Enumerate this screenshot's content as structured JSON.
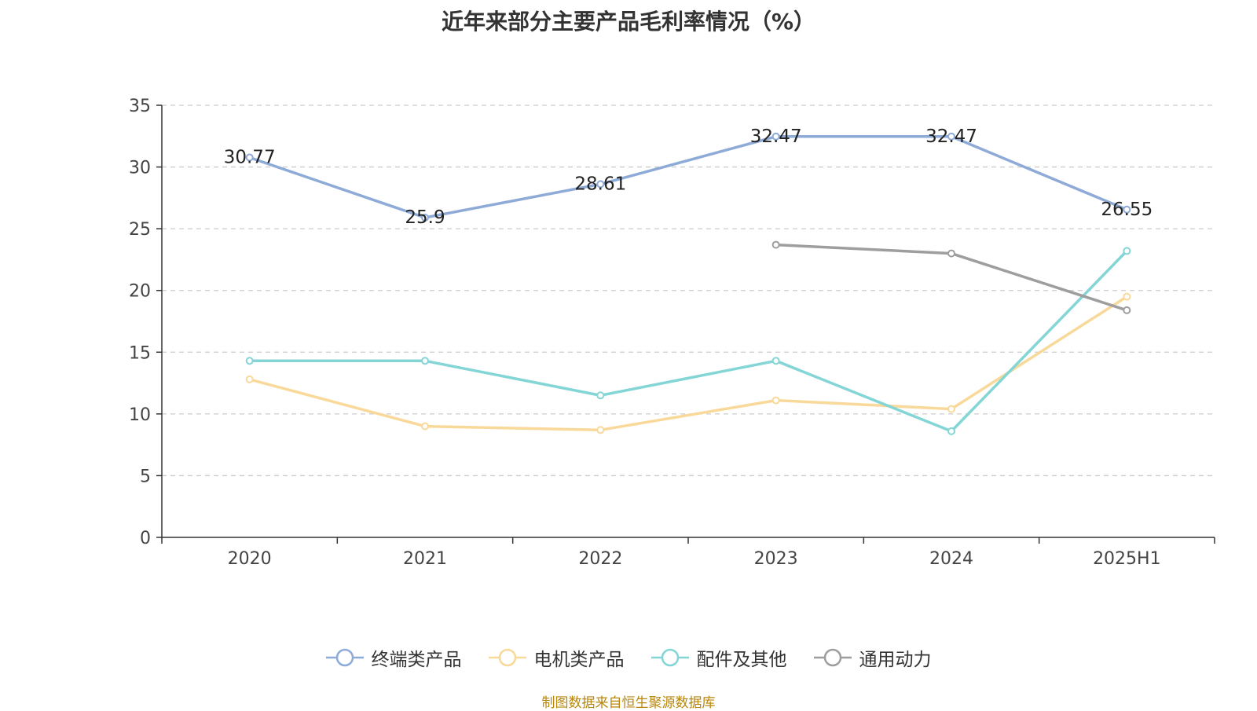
{
  "chart_data": {
    "type": "line",
    "title": "近年来部分主要产品毛利率情况（%）",
    "categories": [
      "2020",
      "2021",
      "2022",
      "2023",
      "2024",
      "2025H1"
    ],
    "ylim": [
      0,
      35
    ],
    "yticks": [
      0,
      5,
      10,
      15,
      20,
      25,
      30,
      35
    ],
    "grid": true,
    "legend_position": "bottom-center",
    "series": [
      {
        "name": "终端类产品",
        "color": "#8eabd8",
        "values": [
          30.77,
          25.9,
          28.61,
          32.47,
          32.47,
          26.55
        ],
        "labels": [
          "30.77",
          "25.9",
          "28.61",
          "32.47",
          "32.47",
          "26.55"
        ]
      },
      {
        "name": "电机类产品",
        "color": "#f9d99a",
        "values": [
          12.8,
          9.0,
          8.7,
          11.1,
          10.4,
          19.5
        ],
        "labels": null
      },
      {
        "name": "配件及其他",
        "color": "#84d5d5",
        "values": [
          14.3,
          14.3,
          11.5,
          14.3,
          8.6,
          23.2
        ],
        "labels": null
      },
      {
        "name": "通用动力",
        "color": "#9e9e9e",
        "values": [
          null,
          null,
          null,
          23.7,
          23.0,
          18.4
        ],
        "labels": null
      }
    ]
  },
  "source": "制图数据来自恒生聚源数据库"
}
